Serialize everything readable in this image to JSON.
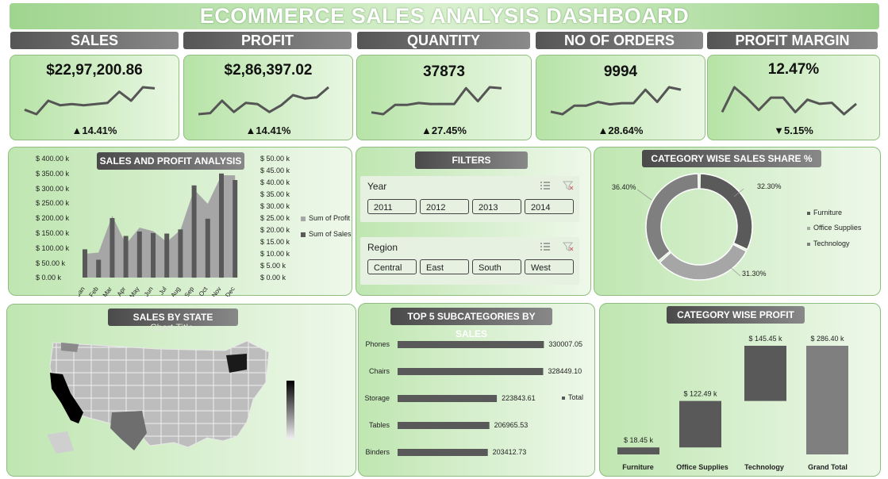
{
  "title": "ECOMMERCE SALES ANALYSIS DASHBOARD",
  "kpis": [
    {
      "label": "SALES",
      "value": "$22,97,200.86",
      "change": "▲14.41%",
      "spark": [
        4,
        2,
        8,
        6,
        6.5,
        6,
        6.5,
        7,
        12,
        8,
        14,
        13.5
      ]
    },
    {
      "label": "PROFIT",
      "value": "$2,86,397.02",
      "change": "▲14.41%",
      "spark": [
        4,
        4.5,
        10,
        5,
        9,
        8.5,
        5,
        8,
        12.5,
        11,
        11.5,
        16
      ]
    },
    {
      "label": "QUANTITY",
      "value": "37873",
      "change": "▲27.45%",
      "spark": [
        2,
        1,
        6,
        6,
        7,
        6.5,
        6.5,
        6.5,
        15,
        8,
        15.5,
        15
      ]
    },
    {
      "label": "NO OF ORDERS",
      "value": "9994",
      "change": "▲28.64%",
      "spark": [
        2,
        1,
        4.5,
        4.5,
        6,
        5,
        5.5,
        5.5,
        11,
        6,
        12,
        11
      ]
    },
    {
      "label": "PROFIT MARGIN",
      "value": "12.47%",
      "change": "▼5.15%",
      "spark": [
        3,
        15,
        10,
        4,
        10,
        10,
        3,
        9,
        7,
        7.5,
        2,
        7
      ]
    }
  ],
  "sales_profit": {
    "title": "SALES AND PROFIT ANALYSIS",
    "left_ticks": [
      "$ 400.00 k",
      "$ 350.00 k",
      "$ 300.00 k",
      "$ 250.00 k",
      "$ 200.00 k",
      "$ 150.00 k",
      "$ 100.00 k",
      "$ 50.00 k",
      "$ 0.00 k"
    ],
    "right_ticks": [
      "$ 50.00 k",
      "$ 45.00 k",
      "$ 40.00 k",
      "$ 35.00 k",
      "$ 30.00 k",
      "$ 25.00 k",
      "$ 20.00 k",
      "$ 15.00 k",
      "$ 10.00 k",
      "$ 5.00 k",
      "$ 0.00 k"
    ],
    "months": [
      "Jan",
      "Feb",
      "Mar",
      "Apr",
      "May",
      "Jun",
      "Jul",
      "Aug",
      "Sep",
      "Oct",
      "Nov",
      "Dec"
    ],
    "sales": [
      95,
      60,
      200,
      140,
      155,
      150,
      148,
      162,
      310,
      198,
      350,
      328
    ],
    "profit": [
      10,
      10.5,
      26,
      14,
      21,
      19.5,
      15,
      20,
      37,
      31,
      43,
      43
    ],
    "legend": [
      "Sum of Profit",
      "Sum of Sales"
    ],
    "colors": {
      "sales": "#595959",
      "profit": "#a6a6a6"
    }
  },
  "filters": {
    "title": "FILTERS",
    "year_title": "Year",
    "years": [
      "2011",
      "2012",
      "2013",
      "2014"
    ],
    "region_title": "Region",
    "regions": [
      "Central",
      "East",
      "South",
      "West"
    ]
  },
  "category_share": {
    "title": "CATEGORY WISE SALES SHARE %",
    "slices": [
      {
        "name": "Furniture",
        "pct": 32.3,
        "label": "32.30%",
        "color": "#5a5a5a"
      },
      {
        "name": "Office Supplies",
        "pct": 31.3,
        "label": "31.30%",
        "color": "#a6a6a6"
      },
      {
        "name": "Technology",
        "pct": 36.4,
        "label": "36.40%",
        "color": "#7f7f7f"
      }
    ]
  },
  "state_map": {
    "title": "SALES BY STATE",
    "ghost": "Chart Title"
  },
  "top_sub": {
    "title": "TOP 5 SUBCATEGORIES BY SALES",
    "items": [
      {
        "name": "Phones",
        "value": 330007.05,
        "label": "330007.05"
      },
      {
        "name": "Chairs",
        "value": 328449.1,
        "label": "328449.10"
      },
      {
        "name": "Storage",
        "value": 223843.61,
        "label": "223843.61"
      },
      {
        "name": "Tables",
        "value": 206965.53,
        "label": "206965.53"
      },
      {
        "name": "Binders",
        "value": 203412.73,
        "label": "203412.73"
      }
    ],
    "legend": "Total",
    "color": "#595959"
  },
  "cat_profit": {
    "title": "CATEGORY WISE PROFIT",
    "items": [
      {
        "name": "Furniture",
        "value": 18.45,
        "label": "$ 18.45 k"
      },
      {
        "name": "Office Supplies",
        "value": 122.49,
        "label": "$ 122.49 k"
      },
      {
        "name": "Technology",
        "value": 145.45,
        "label": "$ 145.45 k"
      },
      {
        "name": "Grand Total",
        "value": 286.4,
        "label": "$ 286.40 k"
      }
    ],
    "colors": {
      "bar": "#595959",
      "total": "#7f7f7f"
    }
  },
  "chart_data": [
    {
      "type": "line",
      "name": "Sales trend",
      "values": [
        4,
        2,
        8,
        6,
        6.5,
        6,
        6.5,
        7,
        12,
        8,
        14,
        13.5
      ]
    },
    {
      "type": "bar",
      "title": "SALES AND PROFIT ANALYSIS",
      "categories": [
        "Jan",
        "Feb",
        "Mar",
        "Apr",
        "May",
        "Jun",
        "Jul",
        "Aug",
        "Sep",
        "Oct",
        "Nov",
        "Dec"
      ],
      "series": [
        {
          "name": "Sum of Sales",
          "values": [
            95,
            60,
            200,
            140,
            155,
            150,
            148,
            162,
            310,
            198,
            350,
            328
          ],
          "unit": "k$",
          "axis": "left"
        },
        {
          "name": "Sum of Profit",
          "type": "area",
          "values": [
            10,
            10.5,
            26,
            14,
            21,
            19.5,
            15,
            20,
            37,
            31,
            43,
            43
          ],
          "unit": "k$",
          "axis": "right"
        }
      ],
      "ylim": [
        0,
        400
      ],
      "y2lim": [
        0,
        50
      ],
      "legend": "right"
    },
    {
      "type": "pie",
      "title": "CATEGORY WISE SALES SHARE %",
      "categories": [
        "Furniture",
        "Office Supplies",
        "Technology"
      ],
      "values": [
        32.3,
        31.3,
        36.4
      ],
      "legend": "right"
    },
    {
      "type": "bar",
      "title": "TOP 5 SUBCATEGORIES BY SALES",
      "orientation": "horizontal",
      "categories": [
        "Phones",
        "Chairs",
        "Storage",
        "Tables",
        "Binders"
      ],
      "values": [
        330007.05,
        328449.1,
        223843.61,
        206965.53,
        203412.73
      ],
      "legend": "right"
    },
    {
      "type": "bar",
      "title": "CATEGORY WISE PROFIT",
      "subtype": "waterfall",
      "categories": [
        "Furniture",
        "Office Supplies",
        "Technology",
        "Grand Total"
      ],
      "values": [
        18.45,
        122.49,
        145.45,
        286.4
      ],
      "unit": "k$"
    }
  ]
}
